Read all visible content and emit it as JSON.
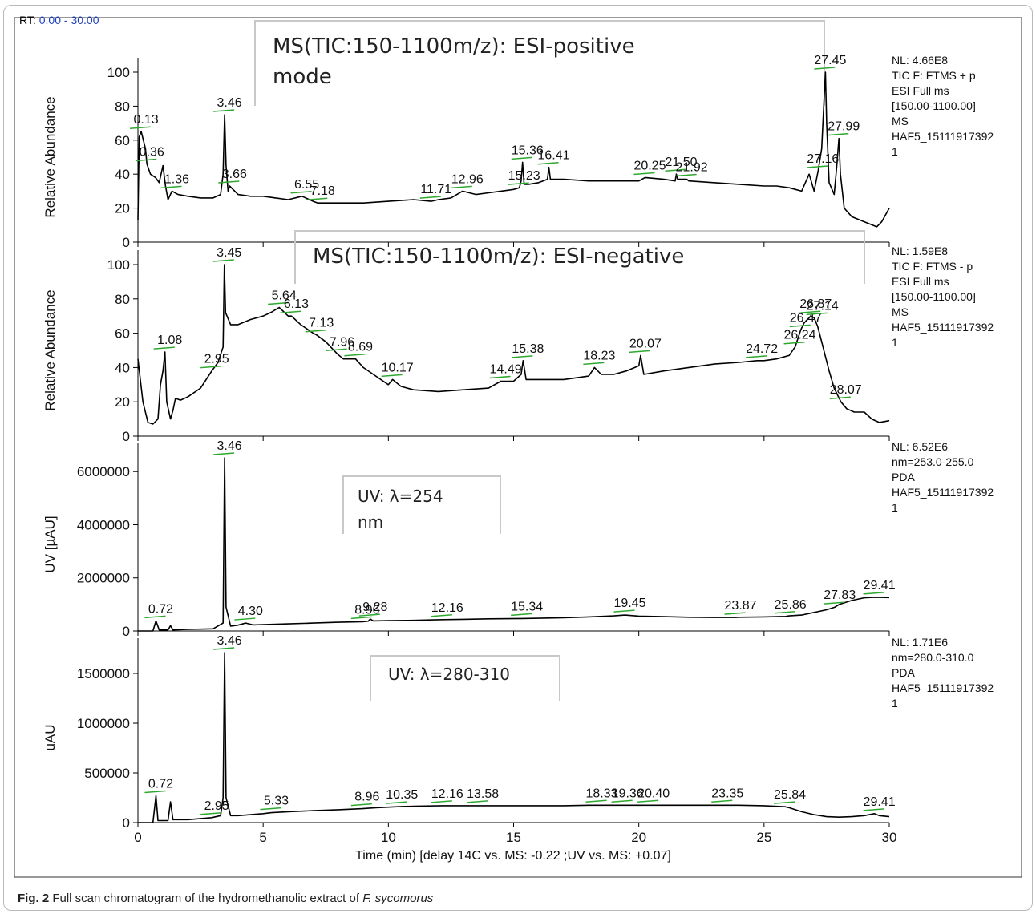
{
  "caption": {
    "fig_label": "Fig. 2",
    "text": "Full scan chromatogram of the hydromethanolic extract of",
    "species": "F. sycomorus"
  },
  "rt": {
    "prefix": "RT:",
    "range": "0.00 - 30.00"
  },
  "chart_data": [
    {
      "type": "line",
      "panel": "ms-positive",
      "ylabel": "Relative Abundance",
      "ylim": [
        0,
        100
      ],
      "yticks": [
        "0",
        "20",
        "40",
        "60",
        "80",
        "100"
      ],
      "overlay_label": [
        "MS(TIC:150-1100m/z): ESI-positive",
        "mode"
      ],
      "info": [
        "NL: 4.66E8",
        "TIC F: FTMS + p",
        "ESI Full ms",
        "[150.00-1100.00]",
        "MS",
        "HAF5_15111917392",
        "1"
      ],
      "x": [
        0,
        0.05,
        0.13,
        0.3,
        0.36,
        0.5,
        0.7,
        0.85,
        1.0,
        1.1,
        1.2,
        1.36,
        1.6,
        2,
        2.5,
        3,
        3.3,
        3.4,
        3.46,
        3.52,
        3.6,
        3.66,
        4,
        4.5,
        5,
        5.5,
        6,
        6.55,
        7,
        7.18,
        7.5,
        8,
        9,
        10,
        11,
        11.71,
        12,
        12.5,
        12.96,
        13.5,
        14,
        14.5,
        15,
        15.23,
        15.3,
        15.36,
        15.42,
        15.6,
        16,
        16.35,
        16.41,
        16.47,
        17,
        18,
        19,
        20,
        20.25,
        21,
        21.45,
        21.5,
        21.55,
        21.92,
        22,
        23,
        24,
        25,
        25.5,
        26,
        26.5,
        26.8,
        27,
        27.16,
        27.3,
        27.4,
        27.45,
        27.5,
        27.6,
        27.8,
        27.9,
        27.99,
        28.05,
        28.2,
        28.5,
        29,
        29.5,
        29.7,
        30
      ],
      "y": [
        13,
        62,
        65,
        55,
        46,
        40,
        38,
        35,
        45,
        33,
        25,
        30,
        28,
        27,
        26,
        26,
        28,
        40,
        75,
        45,
        30,
        33,
        28,
        27,
        27,
        26,
        25,
        27,
        24,
        23,
        23,
        23,
        23,
        24,
        25,
        24,
        25,
        26,
        30,
        28,
        29,
        30,
        31,
        32,
        36,
        47,
        34,
        34,
        35,
        37,
        44,
        37,
        37,
        36,
        36,
        36,
        38,
        37,
        36,
        40,
        37,
        37,
        36,
        35,
        34,
        33,
        33,
        32,
        30,
        40,
        30,
        42,
        55,
        85,
        100,
        70,
        35,
        28,
        44,
        61,
        40,
        20,
        15,
        12,
        9,
        12,
        20
      ],
      "peak_labels": [
        {
          "text": "0.13",
          "x": 0.13,
          "y": 65
        },
        {
          "text": "0.36",
          "x": 0.36,
          "y": 46
        },
        {
          "text": "1.36",
          "x": 1.36,
          "y": 30
        },
        {
          "text": "3.46",
          "x": 3.46,
          "y": 75
        },
        {
          "text": "3.66",
          "x": 3.66,
          "y": 33
        },
        {
          "text": "6.55",
          "x": 6.55,
          "y": 27
        },
        {
          "text": "7.18",
          "x": 7.18,
          "y": 23
        },
        {
          "text": "11.71",
          "x": 11.71,
          "y": 24
        },
        {
          "text": "12.96",
          "x": 12.96,
          "y": 30
        },
        {
          "text": "15.23",
          "x": 15.23,
          "y": 32
        },
        {
          "text": "15.36",
          "x": 15.36,
          "y": 47
        },
        {
          "text": "16.41",
          "x": 16.41,
          "y": 44
        },
        {
          "text": "20.25",
          "x": 20.25,
          "y": 38
        },
        {
          "text": "21.50",
          "x": 21.5,
          "y": 40
        },
        {
          "text": "21.92",
          "x": 21.92,
          "y": 37
        },
        {
          "text": "27.16",
          "x": 27.16,
          "y": 42
        },
        {
          "text": "27.45",
          "x": 27.45,
          "y": 100
        },
        {
          "text": "27.99",
          "x": 27.99,
          "y": 61
        }
      ]
    },
    {
      "type": "line",
      "panel": "ms-negative",
      "ylabel": "Relative Abundance",
      "ylim": [
        0,
        100
      ],
      "yticks": [
        "0",
        "20",
        "40",
        "60",
        "80",
        "100"
      ],
      "overlay_label": [
        "MS(TIC:150-1100m/z): ESI-negative"
      ],
      "info": [
        "NL: 1.59E8",
        "TIC F: FTMS - p",
        "ESI Full ms",
        "[150.00-1100.00]",
        "MS",
        "HAF5_15111917392",
        "1"
      ],
      "x": [
        0,
        0.2,
        0.4,
        0.6,
        0.8,
        0.9,
        1.0,
        1.08,
        1.15,
        1.3,
        1.4,
        1.5,
        1.7,
        2,
        2.5,
        2.95,
        3.2,
        3.4,
        3.45,
        3.5,
        3.7,
        4,
        4.5,
        5,
        5.3,
        5.64,
        6,
        6.13,
        6.5,
        7,
        7.13,
        7.5,
        7.96,
        8.2,
        8.69,
        9,
        9.5,
        10,
        10.17,
        10.5,
        11,
        12,
        13,
        14,
        14.49,
        15,
        15.3,
        15.38,
        15.5,
        16,
        17,
        18,
        18.23,
        18.5,
        19,
        19.5,
        20,
        20.07,
        20.2,
        21,
        22,
        23,
        24,
        24.72,
        25,
        25.5,
        26,
        26.24,
        26.47,
        26.6,
        26.87,
        27,
        27.14,
        27.3,
        27.6,
        27.8,
        28.07,
        28.3,
        28.6,
        29,
        29.3,
        29.6,
        30
      ],
      "y": [
        45,
        20,
        8,
        7,
        10,
        30,
        38,
        49,
        20,
        10,
        15,
        22,
        21,
        23,
        28,
        38,
        43,
        52,
        100,
        72,
        65,
        65,
        68,
        70,
        72,
        75,
        70,
        70,
        65,
        60,
        59,
        55,
        48,
        45,
        45,
        40,
        35,
        30,
        33,
        29,
        27,
        26,
        27,
        28,
        32,
        32,
        36,
        44,
        33,
        33,
        33,
        35,
        40,
        36,
        36,
        38,
        41,
        47,
        36,
        38,
        40,
        42,
        43,
        44,
        44,
        45,
        47,
        52,
        62,
        66,
        70,
        69,
        64,
        55,
        38,
        28,
        20,
        16,
        14,
        14,
        10,
        8,
        9
      ],
      "peak_labels": [
        {
          "text": "1.08",
          "x": 1.08,
          "y": 49
        },
        {
          "text": "2.95",
          "x": 2.95,
          "y": 38
        },
        {
          "text": "3.45",
          "x": 3.45,
          "y": 100
        },
        {
          "text": "5.64",
          "x": 5.64,
          "y": 75
        },
        {
          "text": "6.13",
          "x": 6.13,
          "y": 70
        },
        {
          "text": "7.13",
          "x": 7.13,
          "y": 59
        },
        {
          "text": "7.96",
          "x": 7.96,
          "y": 48
        },
        {
          "text": "8.69",
          "x": 8.69,
          "y": 45
        },
        {
          "text": "10.17",
          "x": 10.17,
          "y": 33
        },
        {
          "text": "14.49",
          "x": 14.49,
          "y": 32
        },
        {
          "text": "15.38",
          "x": 15.38,
          "y": 44
        },
        {
          "text": "18.23",
          "x": 18.23,
          "y": 40
        },
        {
          "text": "20.07",
          "x": 20.07,
          "y": 47
        },
        {
          "text": "24.72",
          "x": 24.72,
          "y": 44
        },
        {
          "text": "26.24",
          "x": 26.24,
          "y": 52
        },
        {
          "text": "26.47",
          "x": 26.47,
          "y": 62
        },
        {
          "text": "26.87",
          "x": 26.87,
          "y": 70
        },
        {
          "text": "27.14",
          "x": 27.14,
          "y": 69
        },
        {
          "text": "28.07",
          "x": 28.07,
          "y": 20
        }
      ]
    },
    {
      "type": "line",
      "panel": "uv-254",
      "ylabel": "UV [µAU]",
      "ylim": [
        0,
        6520000
      ],
      "yticks": [
        "0",
        "2000000",
        "4000000",
        "6000000"
      ],
      "ytick_values": [
        0,
        2000000,
        4000000,
        6000000
      ],
      "overlay_label": [
        "UV: λ=254",
        "nm"
      ],
      "info": [
        "NL: 6.52E6",
        "nm=253.0-255.0",
        "PDA",
        "HAF5_15111917392",
        "1"
      ],
      "x": [
        0,
        0.6,
        0.72,
        0.85,
        1.2,
        1.3,
        1.4,
        2,
        3,
        3.4,
        3.46,
        3.52,
        3.7,
        4,
        4.3,
        4.6,
        5,
        6,
        7,
        8,
        8.96,
        9.2,
        9.28,
        9.4,
        10,
        11,
        12.16,
        13,
        14,
        15.34,
        16,
        17,
        18,
        19,
        19.45,
        20,
        21,
        22,
        23,
        23.87,
        24,
        25,
        25.86,
        26,
        26.5,
        27,
        27.5,
        27.83,
        28,
        28.5,
        29,
        29.41,
        30
      ],
      "y": [
        0,
        0,
        380000,
        40000,
        40000,
        200000,
        40000,
        60000,
        80000,
        300000,
        6520000,
        900000,
        180000,
        220000,
        300000,
        230000,
        240000,
        270000,
        300000,
        330000,
        350000,
        370000,
        450000,
        380000,
        390000,
        400000,
        430000,
        440000,
        460000,
        470000,
        480000,
        500000,
        530000,
        570000,
        600000,
        560000,
        540000,
        520000,
        510000,
        510000,
        520000,
        530000,
        550000,
        570000,
        600000,
        700000,
        800000,
        900000,
        1000000,
        1150000,
        1250000,
        1270000,
        1260000
      ],
      "peak_labels": [
        {
          "text": "0.72",
          "x": 0.72,
          "y": 380000
        },
        {
          "text": "3.46",
          "x": 3.46,
          "y": 6520000
        },
        {
          "text": "4.30",
          "x": 4.3,
          "y": 300000
        },
        {
          "text": "8.96",
          "x": 8.96,
          "y": 350000
        },
        {
          "text": "9.28",
          "x": 9.28,
          "y": 450000
        },
        {
          "text": "12.16",
          "x": 12.16,
          "y": 430000
        },
        {
          "text": "15.34",
          "x": 15.34,
          "y": 470000
        },
        {
          "text": "19.45",
          "x": 19.45,
          "y": 600000
        },
        {
          "text": "23.87",
          "x": 23.87,
          "y": 510000
        },
        {
          "text": "25.86",
          "x": 25.86,
          "y": 550000
        },
        {
          "text": "27.83",
          "x": 27.83,
          "y": 900000
        },
        {
          "text": "29.41",
          "x": 29.41,
          "y": 1270000
        }
      ]
    },
    {
      "type": "line",
      "panel": "uv-280-310",
      "ylabel": "uAU",
      "ylim": [
        0,
        1710000
      ],
      "yticks": [
        "0",
        "500000",
        "1000000",
        "1500000"
      ],
      "ytick_values": [
        0,
        500000,
        1000000,
        1500000
      ],
      "overlay_label": [
        "UV: λ=280-310"
      ],
      "info": [
        "NL: 1.71E6",
        "nm=280.0-310.0",
        "PDA",
        "HAF5_15111917392",
        "1"
      ],
      "xlabel": "Time (min)  [delay 14C vs. MS: -0.22 ;UV vs. MS: +0.07]",
      "xlim": [
        0,
        30
      ],
      "xticks": [
        "0",
        "5",
        "10",
        "15",
        "20",
        "25",
        "30"
      ],
      "xtick_values": [
        0,
        5,
        10,
        15,
        20,
        25,
        30
      ],
      "x": [
        0,
        0.6,
        0.72,
        0.8,
        1.2,
        1.3,
        1.4,
        2,
        2.95,
        3.3,
        3.4,
        3.46,
        3.52,
        3.7,
        4,
        4.5,
        5,
        5.33,
        6,
        7,
        8,
        8.96,
        9.5,
        10.35,
        11,
        12.16,
        13,
        13.58,
        14,
        15,
        16,
        17,
        18,
        18.33,
        19,
        19.36,
        20,
        20.4,
        21,
        22,
        23,
        23.35,
        24,
        25,
        25.84,
        26,
        26.5,
        27,
        27.5,
        28,
        28.5,
        29,
        29.41,
        29.6,
        30
      ],
      "y": [
        0,
        0,
        270000,
        20000,
        20000,
        210000,
        30000,
        30000,
        50000,
        70000,
        250000,
        1710000,
        250000,
        70000,
        70000,
        80000,
        90000,
        100000,
        110000,
        120000,
        130000,
        140000,
        150000,
        160000,
        165000,
        170000,
        170000,
        170000,
        170000,
        170000,
        170000,
        170000,
        175000,
        175000,
        175000,
        175000,
        175000,
        175000,
        175000,
        175000,
        175000,
        175000,
        175000,
        170000,
        160000,
        150000,
        110000,
        80000,
        60000,
        55000,
        60000,
        70000,
        90000,
        70000,
        60000
      ],
      "peak_labels": [
        {
          "text": "0.72",
          "x": 0.72,
          "y": 270000
        },
        {
          "text": "2.95",
          "x": 2.95,
          "y": 50000
        },
        {
          "text": "3.46",
          "x": 3.46,
          "y": 1710000
        },
        {
          "text": "5.33",
          "x": 5.33,
          "y": 100000
        },
        {
          "text": "8.96",
          "x": 8.96,
          "y": 140000
        },
        {
          "text": "10.35",
          "x": 10.35,
          "y": 160000
        },
        {
          "text": "12.16",
          "x": 12.16,
          "y": 170000
        },
        {
          "text": "13.58",
          "x": 13.58,
          "y": 170000
        },
        {
          "text": "18.33",
          "x": 18.33,
          "y": 175000
        },
        {
          "text": "19.36",
          "x": 19.36,
          "y": 175000
        },
        {
          "text": "20.40",
          "x": 20.4,
          "y": 175000
        },
        {
          "text": "23.35",
          "x": 23.35,
          "y": 175000
        },
        {
          "text": "25.84",
          "x": 25.84,
          "y": 160000
        },
        {
          "text": "29.41",
          "x": 29.41,
          "y": 90000
        }
      ]
    }
  ]
}
